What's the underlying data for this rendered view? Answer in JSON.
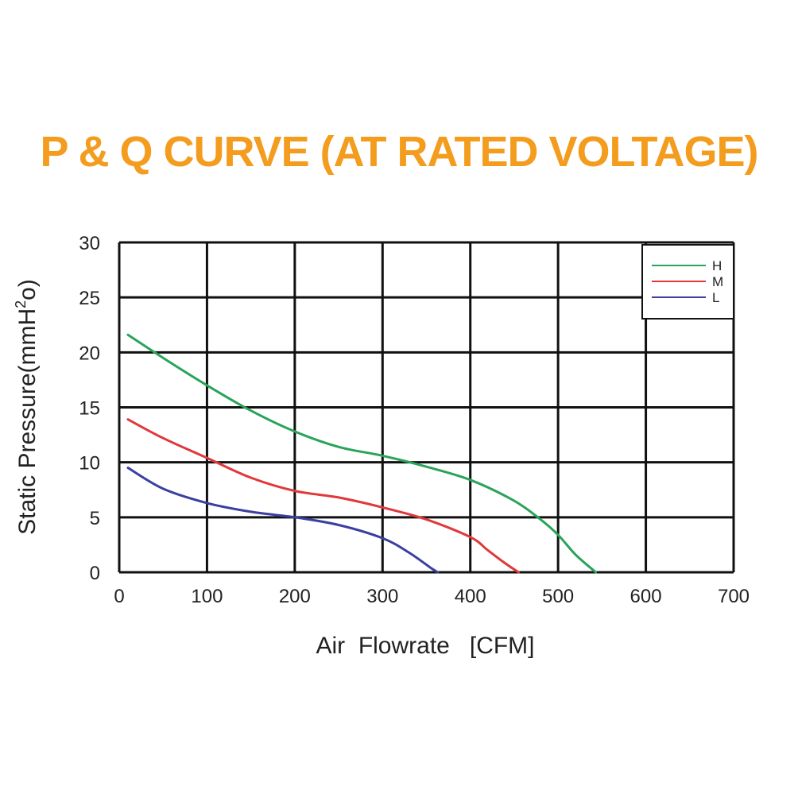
{
  "chart_data": {
    "type": "line",
    "title": "P & Q CURVE (AT RATED VOLTAGE)",
    "xlabel": "Air  Flowrate   [CFM]",
    "ylabel_main": "Static Pressure(mmH",
    "ylabel_sup": "2",
    "ylabel_end": "o)",
    "xlim": [
      0,
      700
    ],
    "ylim": [
      0,
      30
    ],
    "x_ticks": [
      "0",
      "100",
      "200",
      "300",
      "400",
      "500",
      "600",
      "700"
    ],
    "y_ticks": [
      "0",
      "5",
      "10",
      "15",
      "20",
      "25",
      "30"
    ],
    "grid": true,
    "legend_position": "top-right",
    "series": [
      {
        "name": "H",
        "color": "#2aa35a",
        "points": [
          [
            10,
            21.6
          ],
          [
            50,
            19.5
          ],
          [
            100,
            17.0
          ],
          [
            150,
            14.7
          ],
          [
            200,
            12.8
          ],
          [
            250,
            11.4
          ],
          [
            300,
            10.6
          ],
          [
            350,
            9.6
          ],
          [
            400,
            8.4
          ],
          [
            450,
            6.5
          ],
          [
            480,
            4.8
          ],
          [
            500,
            3.4
          ],
          [
            520,
            1.6
          ],
          [
            543,
            0
          ]
        ]
      },
      {
        "name": "M",
        "color": "#e0383b",
        "points": [
          [
            10,
            13.9
          ],
          [
            50,
            12.2
          ],
          [
            100,
            10.4
          ],
          [
            150,
            8.6
          ],
          [
            200,
            7.4
          ],
          [
            250,
            6.8
          ],
          [
            300,
            5.9
          ],
          [
            350,
            4.8
          ],
          [
            400,
            3.2
          ],
          [
            420,
            2.0
          ],
          [
            440,
            0.8
          ],
          [
            455,
            0
          ]
        ]
      },
      {
        "name": "L",
        "color": "#3a3fa0",
        "points": [
          [
            10,
            9.5
          ],
          [
            50,
            7.6
          ],
          [
            100,
            6.3
          ],
          [
            150,
            5.5
          ],
          [
            200,
            5.0
          ],
          [
            250,
            4.3
          ],
          [
            300,
            3.1
          ],
          [
            330,
            1.8
          ],
          [
            355,
            0.4
          ],
          [
            363,
            0
          ]
        ]
      }
    ]
  }
}
